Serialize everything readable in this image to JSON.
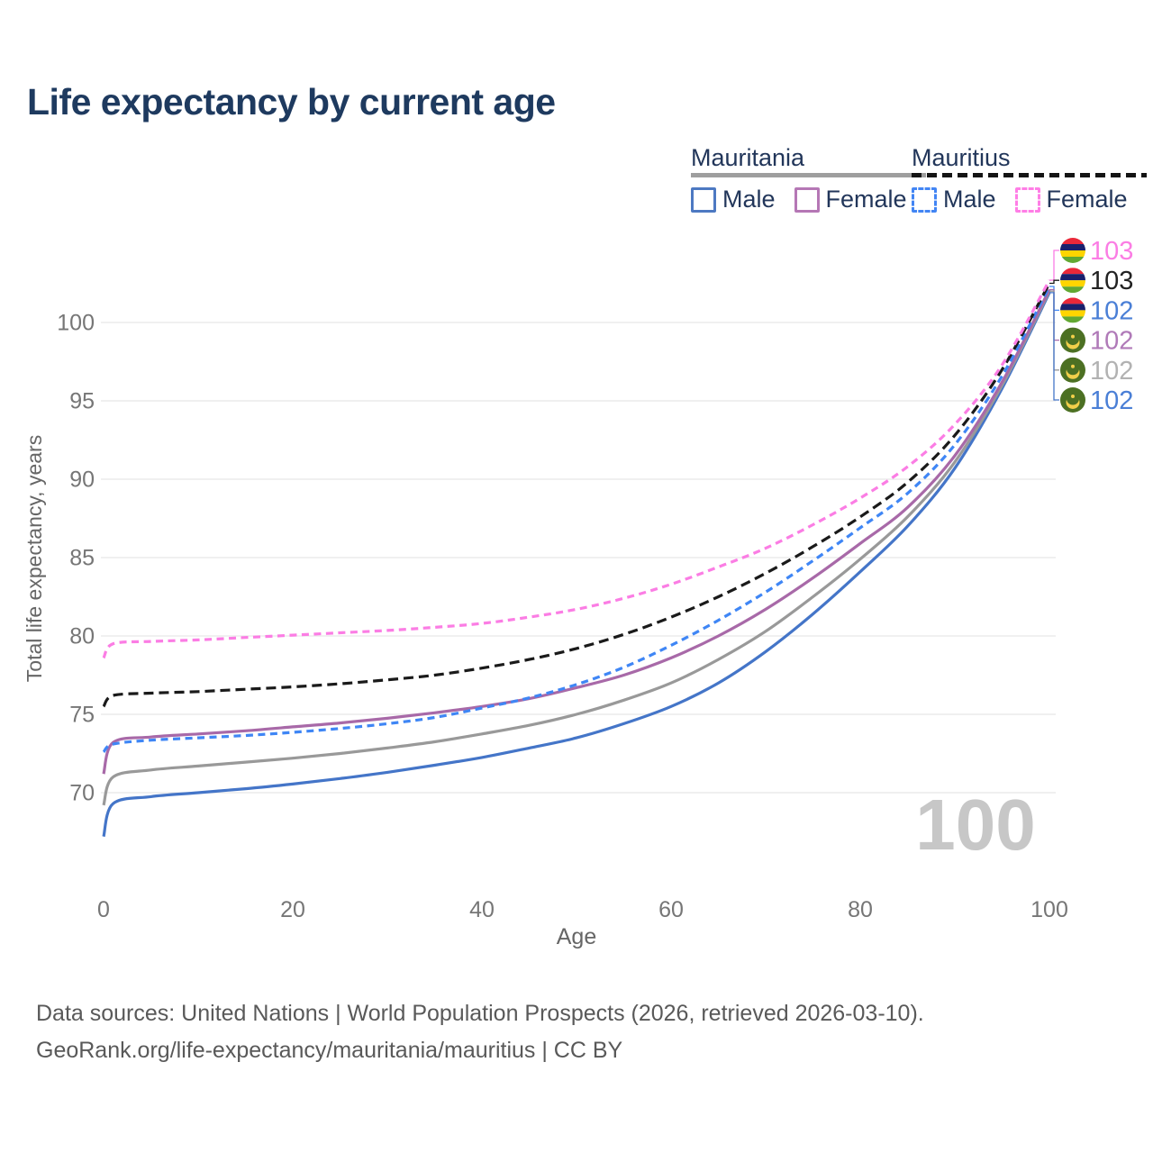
{
  "page": {
    "title": "Life expectancy by current age"
  },
  "legend": {
    "groups": [
      {
        "name": "Mauritania",
        "line_style": "solid",
        "underline_color": "#9e9e9e",
        "items": [
          {
            "label": "Male",
            "swatch_color": "#4d79c2",
            "swatch_style": "solid"
          },
          {
            "label": "Female",
            "swatch_color": "#b577b5",
            "swatch_style": "solid"
          }
        ]
      },
      {
        "name": "Mauritius",
        "line_style": "dashed",
        "underline_color": "#141414",
        "items": [
          {
            "label": "Male",
            "swatch_color": "#4285f4",
            "swatch_style": "dashed"
          },
          {
            "label": "Female",
            "swatch_color": "#ff7ee6",
            "swatch_style": "dashed"
          }
        ]
      }
    ]
  },
  "chart_data": {
    "type": "line",
    "title": "Life expectancy by current age",
    "xlabel": "Age",
    "ylabel": "Total life expectancy, years",
    "xlim": [
      0,
      100
    ],
    "ylim": [
      67,
      103
    ],
    "x_ticks": [
      0,
      20,
      40,
      60,
      80,
      100
    ],
    "y_ticks": [
      70,
      75,
      80,
      85,
      90,
      95,
      100
    ],
    "grid": "horizontal-only",
    "legend_position": "top-right",
    "watermark": "100",
    "ages": [
      0,
      1,
      5,
      10,
      15,
      20,
      25,
      30,
      35,
      40,
      45,
      50,
      55,
      60,
      65,
      70,
      75,
      80,
      85,
      90,
      95,
      100
    ],
    "series": [
      {
        "name": "Mauritius Female",
        "country": "mauritius",
        "sex": "female",
        "style": "dashed",
        "color": "#fb7de4",
        "end_label": "103",
        "end_label_color": "#fb7de4",
        "values": [
          78.6,
          79.5,
          79.65,
          79.75,
          79.9,
          80.05,
          80.2,
          80.35,
          80.55,
          80.8,
          81.2,
          81.7,
          82.4,
          83.3,
          84.4,
          85.6,
          87.1,
          88.8,
          90.8,
          93.5,
          97.3,
          102.7
        ]
      },
      {
        "name": "Mauritius",
        "country": "mauritius",
        "sex": "both",
        "style": "dashed",
        "color": "#1a1a1a",
        "end_label": "103",
        "end_label_color": "#222222",
        "values": [
          75.5,
          76.2,
          76.35,
          76.45,
          76.6,
          76.75,
          76.95,
          77.2,
          77.5,
          77.95,
          78.5,
          79.2,
          80.1,
          81.2,
          82.5,
          84.0,
          85.7,
          87.6,
          89.8,
          92.8,
          97.0,
          102.5
        ]
      },
      {
        "name": "Mauritius Male",
        "country": "mauritius",
        "sex": "male",
        "style": "dashed",
        "color": "#3f86f5",
        "end_label": "102",
        "end_label_color": "#4a7fd6",
        "values": [
          72.6,
          73.1,
          73.35,
          73.5,
          73.65,
          73.85,
          74.1,
          74.4,
          74.8,
          75.4,
          76.05,
          76.9,
          78.0,
          79.4,
          81.0,
          82.8,
          84.8,
          86.9,
          89.1,
          92.2,
          96.6,
          102.3
        ]
      },
      {
        "name": "Mauritania Female",
        "country": "mauritania",
        "sex": "female",
        "style": "solid",
        "color": "#a869a8",
        "end_label": "102",
        "end_label_color": "#b07ab8",
        "values": [
          71.2,
          73.2,
          73.55,
          73.75,
          73.95,
          74.2,
          74.45,
          74.75,
          75.1,
          75.5,
          76.0,
          76.7,
          77.5,
          78.6,
          80.0,
          81.7,
          83.7,
          85.9,
          88.2,
          91.5,
          96.2,
          102.1
        ]
      },
      {
        "name": "Mauritania",
        "country": "mauritania",
        "sex": "both",
        "style": "solid",
        "color": "#999999",
        "end_label": "102",
        "end_label_color": "#b2b2b2",
        "values": [
          69.2,
          71.0,
          71.45,
          71.7,
          71.95,
          72.2,
          72.5,
          72.85,
          73.25,
          73.75,
          74.3,
          75.0,
          75.9,
          77.0,
          78.5,
          80.3,
          82.5,
          84.9,
          87.6,
          91.1,
          96.0,
          102.0
        ]
      },
      {
        "name": "Mauritania Male",
        "country": "mauritania",
        "sex": "male",
        "style": "solid",
        "color": "#4475c8",
        "end_label": "102",
        "end_label_color": "#4a7fd6",
        "values": [
          67.2,
          69.3,
          69.75,
          70.0,
          70.25,
          70.55,
          70.9,
          71.3,
          71.75,
          72.25,
          72.85,
          73.5,
          74.4,
          75.5,
          77.0,
          79.0,
          81.4,
          84.1,
          87.0,
          90.7,
          95.8,
          101.9
        ]
      }
    ],
    "flag_colors": {
      "mauritius": {
        "stripes": [
          "#ea2839",
          "#1a206d",
          "#ffd500",
          "#62a832"
        ]
      },
      "mauritania": {
        "field": "#4c7023",
        "crescent": "#f2cf4a"
      }
    }
  },
  "footer": {
    "line1": "Data sources: United Nations | World Population Prospects (2026, retrieved 2026-03-10).",
    "line2": "GeoRank.org/life-expectancy/mauritania/mauritius | CC BY"
  }
}
